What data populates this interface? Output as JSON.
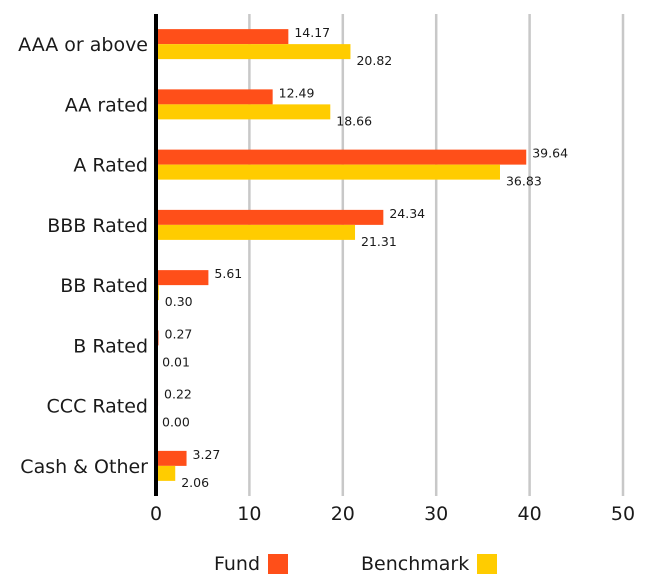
{
  "chart_data": {
    "type": "bar",
    "orientation": "horizontal",
    "categories": [
      "AAA or above",
      "AA rated",
      "A Rated",
      "BBB Rated",
      "BB Rated",
      "B Rated",
      "CCC Rated",
      "Cash & Other"
    ],
    "series": [
      {
        "name": "Fund",
        "color": "#ff4f19",
        "values": [
          14.17,
          12.49,
          39.64,
          24.34,
          5.61,
          0.27,
          0.22,
          3.27
        ],
        "labels": [
          "14.17",
          "12.49",
          "39.64",
          "24.34",
          "5.61",
          "0.27",
          "0.22",
          "3.27"
        ]
      },
      {
        "name": "Benchmark",
        "color": "#ffcc00",
        "values": [
          20.82,
          18.66,
          36.83,
          21.31,
          0.3,
          0.01,
          0.0,
          2.06
        ],
        "labels": [
          "20.82",
          "18.66",
          "36.83",
          "21.31",
          "0.30",
          "0.01",
          "0.00",
          "2.06"
        ]
      }
    ],
    "xlim": [
      0,
      50
    ],
    "xticks": [
      "0",
      "10",
      "20",
      "30",
      "40",
      "50"
    ],
    "grid": true,
    "legend_position": "bottom"
  }
}
